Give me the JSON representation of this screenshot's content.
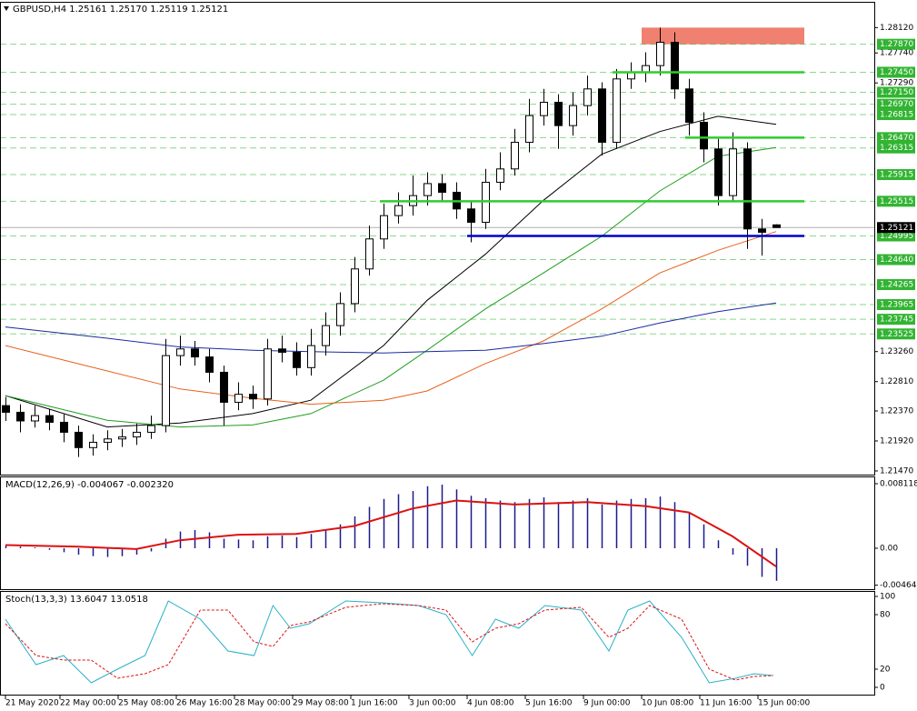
{
  "chart_data": [
    {
      "type": "candlestick",
      "title": "GBPUSD,H4  1.25161 1.25170 1.25119 1.25121",
      "open": [
        1.2245,
        1.2235,
        1.2222,
        1.223,
        1.222,
        1.2205,
        1.2182,
        1.219,
        1.2195,
        1.2198,
        1.2205,
        1.2215,
        1.232,
        1.233,
        1.2318,
        1.2295,
        1.225,
        1.2262,
        1.2255,
        1.233,
        1.2325,
        1.2302,
        1.2335,
        1.2365,
        1.2398,
        1.245,
        1.2495,
        1.253,
        1.2545,
        1.256,
        1.2578,
        1.2565,
        1.254,
        1.252,
        1.258,
        1.26,
        1.264,
        1.268,
        1.27,
        1.2665,
        1.2695,
        1.272,
        1.264,
        1.2735,
        1.2745,
        1.2755,
        1.279,
        1.272,
        1.267,
        1.263,
        1.256,
        1.263,
        1.251,
        1.25161
      ],
      "high": [
        1.2258,
        1.2247,
        1.2245,
        1.224,
        1.2232,
        1.2215,
        1.2202,
        1.2208,
        1.221,
        1.2218,
        1.223,
        1.2345,
        1.235,
        1.2342,
        1.233,
        1.2305,
        1.228,
        1.2275,
        1.2345,
        1.235,
        1.234,
        1.236,
        1.2385,
        1.2415,
        1.2468,
        1.2515,
        1.2548,
        1.2565,
        1.259,
        1.2595,
        1.2592,
        1.258,
        1.2552,
        1.26,
        1.2625,
        1.266,
        1.2705,
        1.272,
        1.2712,
        1.2715,
        1.274,
        1.273,
        1.275,
        1.276,
        1.2775,
        1.2812,
        1.2805,
        1.2735,
        1.2685,
        1.2645,
        1.2655,
        1.264,
        1.2525,
        1.2517
      ],
      "low": [
        1.2222,
        1.2205,
        1.2212,
        1.2208,
        1.219,
        1.2168,
        1.217,
        1.2178,
        1.2183,
        1.2186,
        1.2195,
        1.2205,
        1.2305,
        1.2305,
        1.228,
        1.2215,
        1.2238,
        1.224,
        1.2245,
        1.231,
        1.229,
        1.229,
        1.232,
        1.235,
        1.2385,
        1.244,
        1.248,
        1.2518,
        1.253,
        1.2545,
        1.255,
        1.2525,
        1.249,
        1.251,
        1.2568,
        1.259,
        1.2625,
        1.2665,
        1.263,
        1.265,
        1.268,
        1.262,
        1.263,
        1.272,
        1.273,
        1.274,
        1.2705,
        1.265,
        1.261,
        1.2545,
        1.255,
        1.248,
        1.247,
        1.25119
      ],
      "close": [
        1.2235,
        1.2222,
        1.223,
        1.222,
        1.2205,
        1.2182,
        1.219,
        1.2195,
        1.2198,
        1.2205,
        1.2215,
        1.232,
        1.233,
        1.2318,
        1.2295,
        1.225,
        1.2262,
        1.2255,
        1.233,
        1.2325,
        1.2302,
        1.2335,
        1.2365,
        1.2398,
        1.245,
        1.2495,
        1.253,
        1.2545,
        1.256,
        1.2578,
        1.2565,
        1.254,
        1.252,
        1.258,
        1.26,
        1.264,
        1.268,
        1.27,
        1.2665,
        1.2695,
        1.272,
        1.264,
        1.2735,
        1.2745,
        1.2755,
        1.279,
        1.272,
        1.267,
        1.263,
        1.256,
        1.263,
        1.251,
        1.2505,
        1.25121
      ],
      "ylim": [
        1.21415,
        1.28343
      ],
      "yticks": [
        {
          "value": 1.2812,
          "label": "1.28120"
        },
        {
          "value": 1.2774,
          "label": "1.27740"
        },
        {
          "value": 1.2729,
          "label": "1.27290"
        },
        {
          "value": 1.2326,
          "label": "1.23260"
        },
        {
          "value": 1.2281,
          "label": "1.22810"
        },
        {
          "value": 1.2237,
          "label": "1.22370"
        },
        {
          "value": 1.2192,
          "label": "1.21920"
        },
        {
          "value": 1.2147,
          "label": "1.21470"
        }
      ],
      "xticks": [
        {
          "value": 0,
          "label": "21 May 2020"
        },
        {
          "value": 3.75,
          "label": "22 May 00:00"
        },
        {
          "value": 7.75,
          "label": "25 May 08:00"
        },
        {
          "value": 11.75,
          "label": "26 May 16:00"
        },
        {
          "value": 15.75,
          "label": "28 May 00:00"
        },
        {
          "value": 19.75,
          "label": "29 May 08:00"
        },
        {
          "value": 23.75,
          "label": "1 Jun 16:00"
        },
        {
          "value": 27.75,
          "label": "3 Jun 00:00"
        },
        {
          "value": 31.75,
          "label": "4 Jun 08:00"
        },
        {
          "value": 35.75,
          "label": "5 Jun 16:00"
        },
        {
          "value": 39.75,
          "label": "9 Jun 00:00"
        },
        {
          "value": 43.75,
          "label": "10 Jun 08:00"
        },
        {
          "value": 47.75,
          "label": "11 Jun 16:00"
        },
        {
          "value": 51.75,
          "label": "15 Jun 00:00"
        }
      ],
      "level_color": "#32b432",
      "levels": [
        {
          "value": 1.2787,
          "label": "1.27870"
        },
        {
          "value": 1.2745,
          "label": "1.27450"
        },
        {
          "value": 1.2715,
          "label": "1.27150"
        },
        {
          "value": 1.2697,
          "label": "1.26970"
        },
        {
          "value": 1.26815,
          "label": "1.26815"
        },
        {
          "value": 1.2647,
          "label": "1.26470"
        },
        {
          "value": 1.26315,
          "label": "1.26315"
        },
        {
          "value": 1.25915,
          "label": "1.25915"
        },
        {
          "value": 1.25515,
          "label": "1.25515"
        },
        {
          "value": 1.24995,
          "label": "1.24995"
        },
        {
          "value": 1.2464,
          "label": "1.24640"
        },
        {
          "value": 1.24265,
          "label": "1.24265"
        },
        {
          "value": 1.23965,
          "label": "1.23965"
        },
        {
          "value": 1.23745,
          "label": "1.23745"
        },
        {
          "value": 1.23525,
          "label": "1.23525"
        }
      ],
      "current": {
        "value": 1.25121,
        "label": "1.25121"
      },
      "zone": {
        "low": 1.2787,
        "high": 1.2812,
        "x": 44,
        "color": "#f08070"
      },
      "lines": [
        {
          "value": 1.2745,
          "x": 42,
          "color": "#2ecc2e"
        },
        {
          "value": 1.2647,
          "x": 47,
          "color": "#2ecc2e"
        },
        {
          "value": 1.25515,
          "x": 26,
          "color": "#2ecc2e"
        },
        {
          "value": 1.24995,
          "x": 32,
          "color": "#0000cc"
        }
      ],
      "series": [
        {
          "color": "#000000",
          "x": [
            0,
            7,
            12,
            17,
            21,
            26,
            29,
            33,
            37,
            41,
            45,
            49,
            53
          ],
          "values": [
            1.226,
            1.2213,
            1.2219,
            1.2233,
            1.2253,
            1.2335,
            1.2403,
            1.2472,
            1.2553,
            1.2622,
            1.2656,
            1.2679,
            1.2667
          ]
        },
        {
          "color": "#1e9e1e",
          "x": [
            0,
            7,
            12,
            17,
            21,
            26,
            29,
            33,
            37,
            41,
            45,
            49,
            53
          ],
          "values": [
            1.226,
            1.2223,
            1.2213,
            1.2216,
            1.2233,
            1.2283,
            1.2328,
            1.239,
            1.2444,
            1.2499,
            1.2567,
            1.2619,
            1.2632
          ]
        },
        {
          "color": "#e8601c",
          "x": [
            0,
            7,
            12,
            17,
            21,
            26,
            29,
            33,
            37,
            41,
            45,
            49,
            53
          ],
          "values": [
            1.2335,
            1.2297,
            1.227,
            1.2256,
            1.2247,
            1.2253,
            1.2267,
            1.2308,
            1.2342,
            1.239,
            1.2444,
            1.2478,
            1.2506
          ]
        },
        {
          "color": "#1a2aa0",
          "x": [
            0,
            7,
            12,
            17,
            21,
            26,
            29,
            33,
            37,
            41,
            45,
            49,
            53
          ],
          "values": [
            1.2363,
            1.2346,
            1.2333,
            1.2328,
            1.2326,
            1.2324,
            1.2326,
            1.2328,
            1.2338,
            1.2349,
            1.2369,
            1.2386,
            1.2399
          ]
        }
      ]
    },
    {
      "type": "macd",
      "title": "MACD(12,26,9) -0.004067 -0.002320",
      "ylim": [
        -0.00515,
        0.00892
      ],
      "yticks": [
        0.008118,
        {
          "value": 0,
          "label": "0.00"
        },
        -0.004647
      ],
      "histogram": {
        "color": "#1a1a8c",
        "values": [
          0.0003,
          0.0002,
          0.0001,
          -0.0002,
          -0.0005,
          -0.0008,
          -0.001,
          -0.0011,
          -0.001,
          -0.0008,
          -0.0004,
          0.0012,
          0.0021,
          0.0023,
          0.002,
          0.0012,
          0.0011,
          0.001,
          0.0015,
          0.0016,
          0.0014,
          0.0018,
          0.0023,
          0.003,
          0.004,
          0.0052,
          0.0062,
          0.0068,
          0.0072,
          0.0078,
          0.008,
          0.0074,
          0.0066,
          0.0063,
          0.006,
          0.0058,
          0.0062,
          0.0064,
          0.0058,
          0.006,
          0.0063,
          0.0055,
          0.006,
          0.0062,
          0.0063,
          0.0065,
          0.0058,
          0.0045,
          0.003,
          0.001,
          -0.0008,
          -0.0022,
          -0.0036,
          -0.0041
        ]
      },
      "signal": {
        "color": "#dd1111",
        "x": [
          0,
          5,
          9,
          12,
          16,
          20,
          24,
          28,
          31,
          35,
          40,
          44,
          47,
          50,
          53
        ],
        "values": [
          0.0004,
          0.0002,
          -0.0001,
          0.001,
          0.0017,
          0.0018,
          0.0028,
          0.005,
          0.006,
          0.0055,
          0.0058,
          0.0053,
          0.0045,
          0.0015,
          -0.0023
        ]
      }
    },
    {
      "type": "stoch",
      "title": "Stoch(13,3,3) 13.6047 13.0518",
      "ylim": [
        -8,
        105
      ],
      "yticks": [
        100,
        80,
        20,
        0
      ],
      "series": [
        {
          "color": "#2ab0c8",
          "dash": false,
          "x": [
            0,
            2.1,
            4,
            5.9,
            7.7,
            9.6,
            11.2,
            13.4,
            15.3,
            17.1,
            18.4,
            19.6,
            20.9,
            23.4,
            25.9,
            28.4,
            30.3,
            32.1,
            33.7,
            35.3,
            37.1,
            39.6,
            41.5,
            42.8,
            44.3,
            46.5,
            48.4,
            50.2,
            51.5,
            52.8
          ],
          "values": [
            75,
            25,
            35,
            5,
            20,
            35,
            95,
            75,
            40,
            35,
            90,
            65,
            70,
            95,
            93,
            90,
            80,
            35,
            75,
            65,
            90,
            85,
            40,
            85,
            95,
            55,
            5,
            10,
            15,
            13
          ]
        },
        {
          "color": "#dd1111",
          "dash": true,
          "x": [
            0,
            2.1,
            4,
            5.9,
            7.7,
            9.6,
            11.2,
            13.4,
            15.3,
            17.1,
            18.4,
            19.6,
            20.9,
            23.4,
            25.9,
            28.4,
            30.3,
            32.1,
            33.7,
            35.3,
            37.1,
            39.6,
            41.5,
            42.8,
            44.3,
            46.5,
            48.4,
            50.2,
            51.5,
            52.8
          ],
          "values": [
            70,
            35,
            30,
            30,
            10,
            15,
            25,
            85,
            85,
            50,
            45,
            68,
            72,
            88,
            92,
            90,
            85,
            50,
            65,
            70,
            85,
            88,
            55,
            65,
            90,
            75,
            20,
            8,
            12,
            13
          ]
        }
      ]
    }
  ]
}
